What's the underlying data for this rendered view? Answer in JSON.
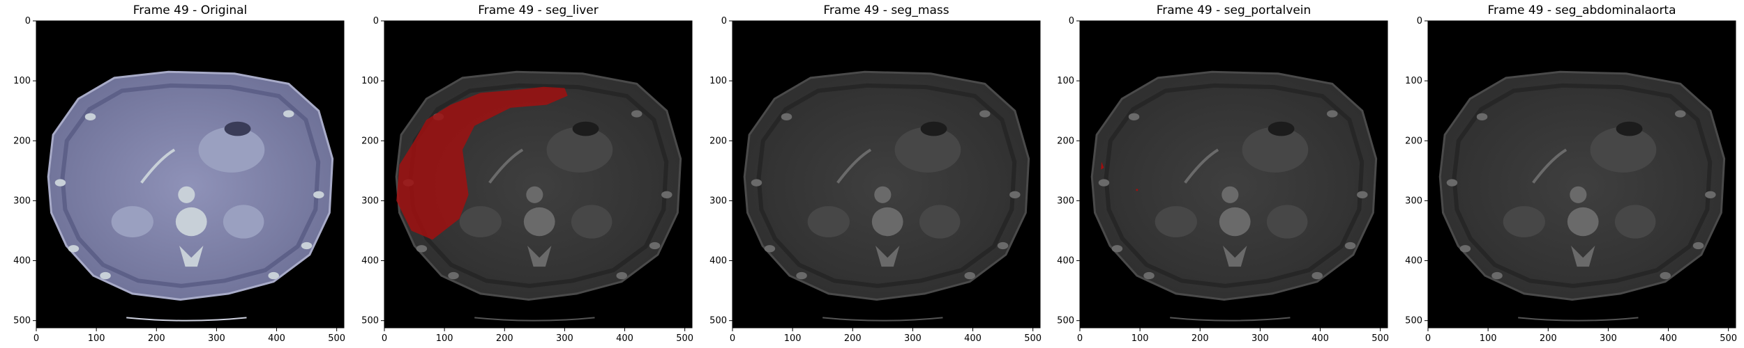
{
  "figure": {
    "panels": [
      {
        "title": "Frame 49 - Original",
        "mode": "original",
        "overlay": "none"
      },
      {
        "title": "Frame 49 - seg_liver",
        "mode": "dim",
        "overlay": "liver"
      },
      {
        "title": "Frame 49 - seg_mass",
        "mode": "dim",
        "overlay": "none"
      },
      {
        "title": "Frame 49 - seg_portalvein",
        "mode": "dim",
        "overlay": "portalvein"
      },
      {
        "title": "Frame 49 - seg_abdominalaorta",
        "mode": "dim",
        "overlay": "none"
      }
    ],
    "axis_ticks": {
      "x": [
        0,
        100,
        200,
        300,
        400,
        500
      ],
      "y": [
        0,
        100,
        200,
        300,
        400,
        500
      ]
    },
    "image_extent": [
      0,
      512
    ],
    "colors": {
      "background": "#000000",
      "original_tint": "#7e80a8",
      "dim_body": "#3a3a3a",
      "mask": "#a01010"
    }
  }
}
